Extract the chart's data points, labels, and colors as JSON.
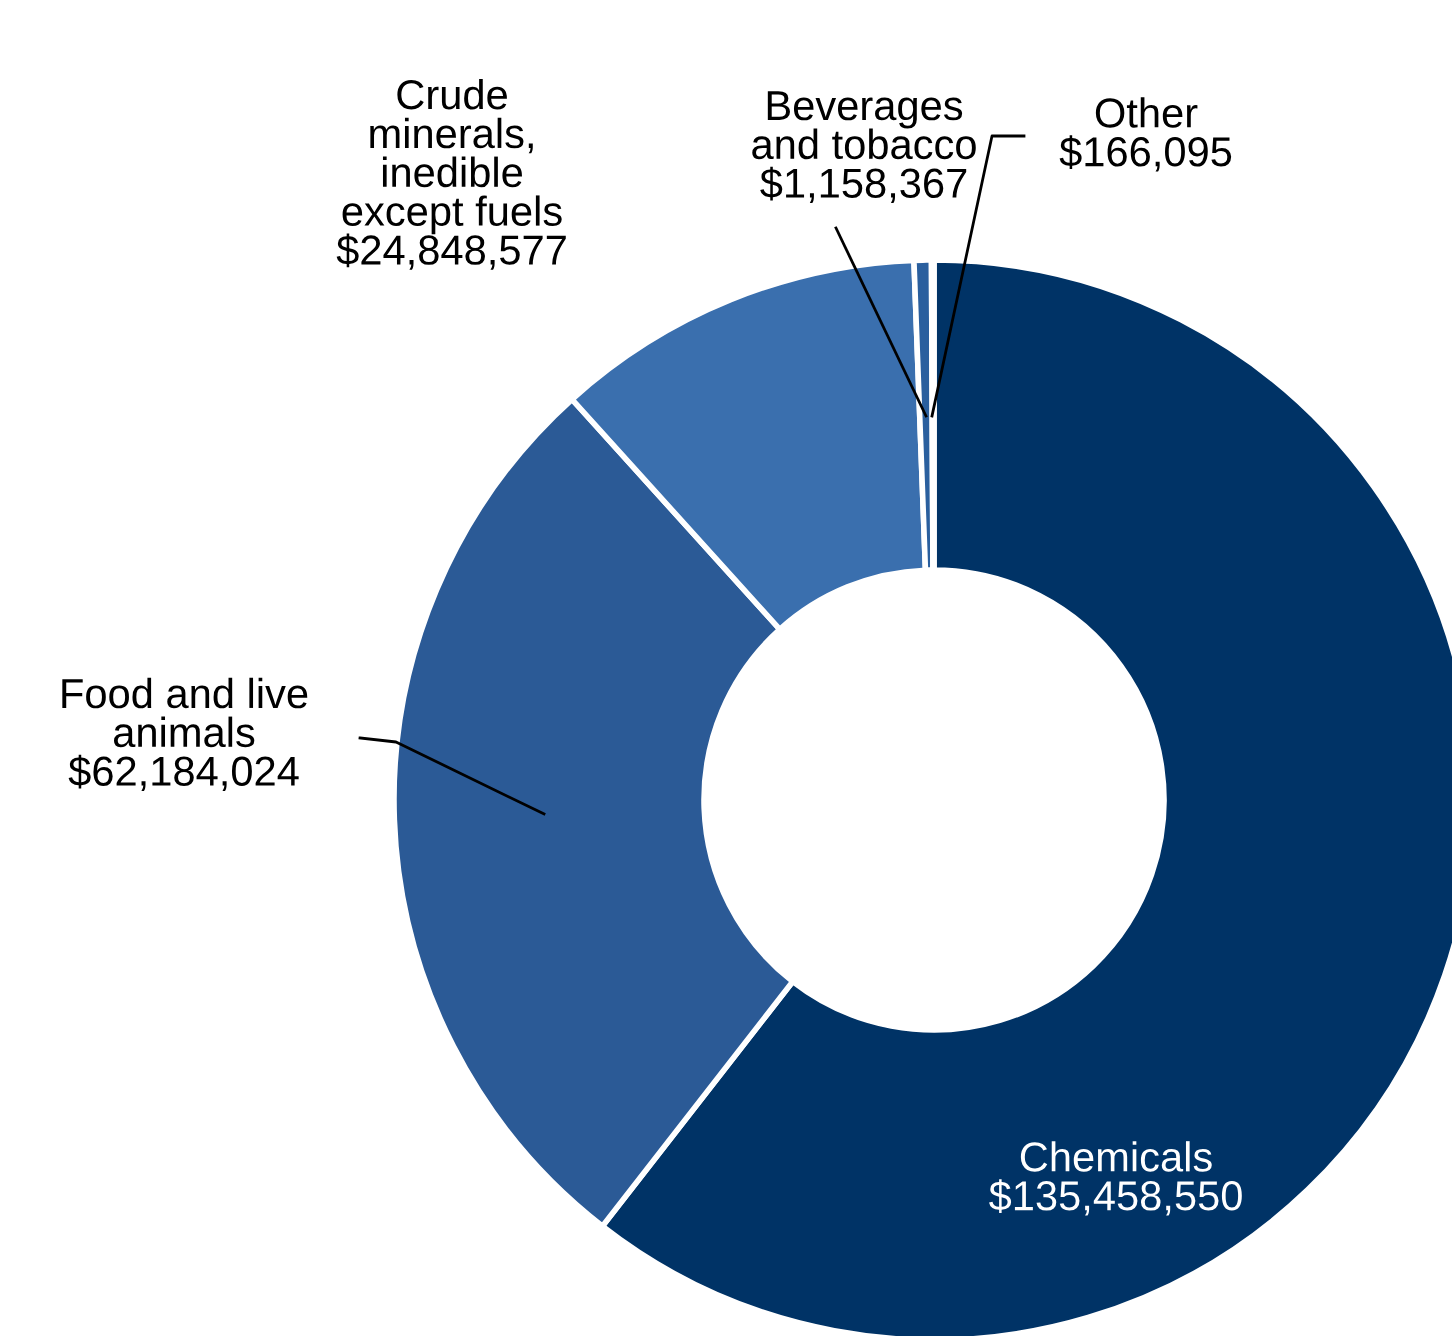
{
  "chart_data": {
    "type": "donut",
    "categories": [
      "Chemicals",
      "Food and live\nanimals",
      "Crude\nminerals,\ninedible\nexcept fuels",
      "Beverages\nand tobacco",
      "Other"
    ],
    "values": [
      135458550,
      62184024,
      24848577,
      1158367,
      166095
    ],
    "value_labels": [
      "$135,458,550",
      "$62,184,024",
      "$24,848,577",
      "$1,158,367",
      "$166,095"
    ],
    "colors": [
      "#003366",
      "#2b5a96",
      "#3a6fae",
      "#2a5f9e",
      "#5b9bd5"
    ],
    "legend": false
  }
}
